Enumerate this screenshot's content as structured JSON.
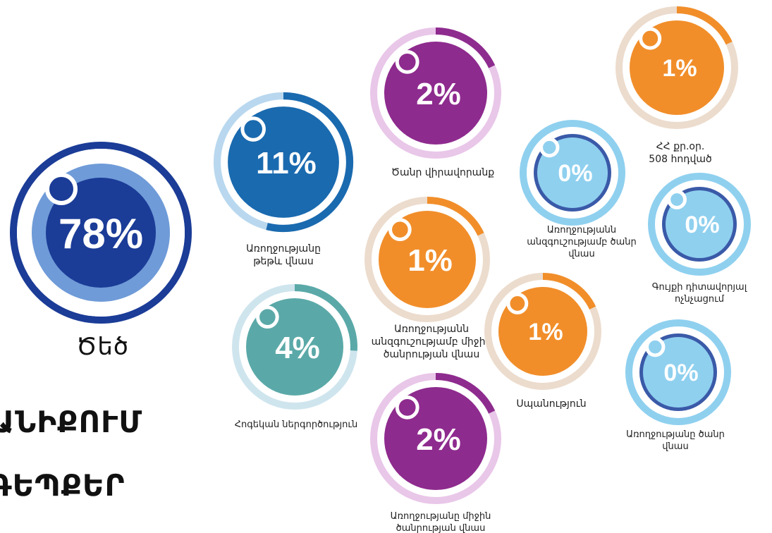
{
  "chart_data": {
    "type": "pie",
    "title": "",
    "categories": [
      "Ծեծ",
      "Առողջությանը թեթև վնաս",
      "Ծանր վիրավորանք",
      "ՀՀ քր.օր. 508 հոդված",
      "Առողջությանը անզգուշությամբ ծանր վնաս",
      "Առողջությանը անզգուշությամբ միջին ծանրության վնաս",
      "Գույքի դիտավորյալ ոչնչացում",
      "Հոգեկան ներգործություն",
      "Սպանություն",
      "Առողջությանը ծանր վնաս",
      "Առողջությանը միջին ծանրության վնաս"
    ],
    "values": [
      78,
      11,
      2,
      1,
      0,
      1,
      0,
      4,
      1,
      0,
      2
    ],
    "value_labels": [
      "78%",
      "11%",
      "2%",
      "1%",
      "0%",
      "1%",
      "0%",
      "4%",
      "1%",
      "0%",
      "2%"
    ],
    "value_unit": "%",
    "colors": [
      "#1b3c97",
      "#1a6aaf",
      "#8e2b8e",
      "#f18e2a",
      "#3a5aa8",
      "#f18e2a",
      "#3a5aa8",
      "#5aa9a8",
      "#f18e2a",
      "#3a5aa8",
      "#8e2b8e"
    ]
  },
  "items": [
    {
      "name": "Ծեծ",
      "label_lines": [
        "Ծեծ"
      ],
      "value": 78,
      "value_label": "78%",
      "theme": "navy"
    },
    {
      "name": "Առողջությանը թեթև վնաս",
      "label_lines": [
        "Առողջությանը",
        "թեթև վնաս"
      ],
      "value": 11,
      "value_label": "11%",
      "theme": "blue"
    },
    {
      "name": "Ծանր վիրավորանք",
      "label_lines": [
        "Ծանր վիրավորանք"
      ],
      "value": 2,
      "value_label": "2%",
      "theme": "purple"
    },
    {
      "name": "ՀՀ քր.օր. 508 հոդված",
      "label_lines": [
        "ՀՀ քր.օր.",
        "508 հոդված"
      ],
      "value": 1,
      "value_label": "1%",
      "theme": "orange"
    },
    {
      "name": "Առողջությանը անզգուշությամբ ծանր վնաս",
      "label_lines": [
        "Առողջությանն",
        "անզգուշությամբ ծանր",
        "վնաս"
      ],
      "value": 0,
      "value_label": "0%",
      "theme": "light"
    },
    {
      "name": "Առողջությանը անզգուշությամբ միջին ծանրության վնաս",
      "label_lines": [
        "Առողջությանն",
        "անզգուշությամբ միջին",
        "ծանրության  վնաս"
      ],
      "value": 1,
      "value_label": "1%",
      "theme": "orange"
    },
    {
      "name": "Գույքի դիտավորյալ ոչնչացում",
      "label_lines": [
        "Գույքի դիտավորյալ",
        "ոչնչացում"
      ],
      "value": 0,
      "value_label": "0%",
      "theme": "light"
    },
    {
      "name": "Հոգեկան ներգործություն",
      "label_lines": [
        "Հոգեկան ներգործություն"
      ],
      "value": 4,
      "value_label": "4%",
      "theme": "teal"
    },
    {
      "name": "Սպանություն",
      "label_lines": [
        "Սպանություն"
      ],
      "value": 1,
      "value_label": "1%",
      "theme": "orange"
    },
    {
      "name": "Առողջությանը ծանր վնաս",
      "label_lines": [
        "Առողջությանը ծանր",
        "վնաս"
      ],
      "value": 0,
      "value_label": "0%",
      "theme": "light"
    },
    {
      "name": "Առողջությանը միջին ծանրության վնաս",
      "label_lines": [
        "Առողջությանը միջին",
        "ծանրության վնաս"
      ],
      "value": 2,
      "value_label": "2%",
      "theme": "purple"
    }
  ],
  "themes": {
    "navy": {
      "outer": "#1b3c97",
      "track": "#ffffff",
      "disc": "#1b3c97",
      "halo": "#6f9bd8",
      "text": "#ffffff",
      "knob": "#1b3c97"
    },
    "blue": {
      "outer": "#1a6aaf",
      "track": "#b9d8ef",
      "disc": "#1a6aaf",
      "halo": "#1a6aaf",
      "text": "#ffffff",
      "knob": "#1a6aaf"
    },
    "purple": {
      "outer": "#8e2b8e",
      "track": "#e9c7e9",
      "disc": "#8e2b8e",
      "halo": "#8e2b8e",
      "text": "#ffffff",
      "knob": "#8e2b8e"
    },
    "orange": {
      "outer": "#f18e2a",
      "track": "#ecdccd",
      "disc": "#f18e2a",
      "halo": "#f18e2a",
      "text": "#ffffff",
      "knob": "#f18e2a"
    },
    "light": {
      "outer": "#8fd0ef",
      "track": "#8fd0ef",
      "disc": "#8fd0ef",
      "halo": "#3a5aa8",
      "text": "#ffffff",
      "knob": "#8fd0ef"
    },
    "teal": {
      "outer": "#5aa9a8",
      "track": "#cfe5ee",
      "disc": "#5aa9a8",
      "halo": "#5aa9a8",
      "text": "#ffffff",
      "knob": "#5aa9a8"
    }
  },
  "text_lines": [
    "ԱՆԻՔՈՒՄ",
    "ԳԵՊՔԵՐ"
  ]
}
